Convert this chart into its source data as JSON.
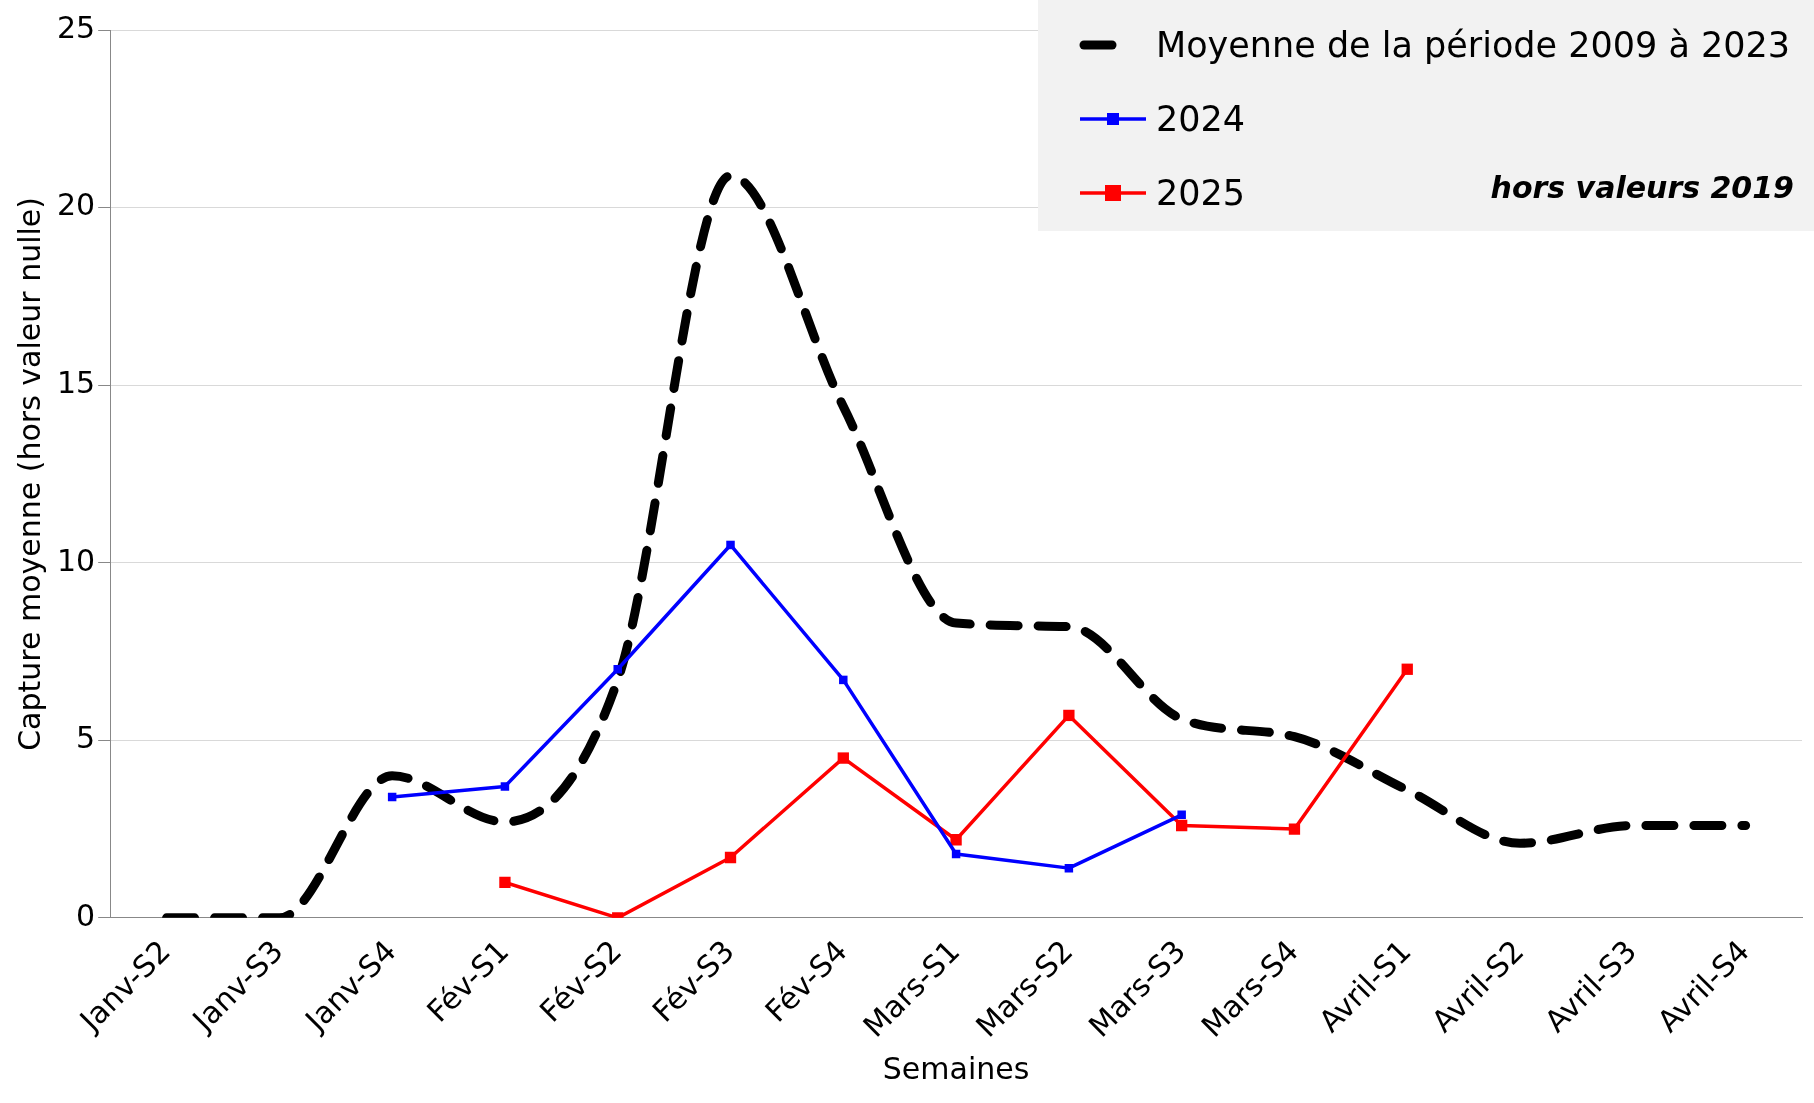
{
  "chart_data": {
    "type": "line",
    "xlabel": "Semaines",
    "ylabel": "Capture moyenne (hors valeur nulle)",
    "categories": [
      "Janv-S2",
      "Janv-S3",
      "Janv-S4",
      "Fév-S1",
      "Fév-S2",
      "Fév-S3",
      "Fév-S4",
      "Mars-S1",
      "Mars-S2",
      "Mars-S3",
      "Mars-S4",
      "Avril-S1",
      "Avril-S2",
      "Avril-S3",
      "Avril-S4"
    ],
    "series": [
      {
        "name": "Moyenne de la période 2009 à 2023",
        "color": "#000000",
        "line_style": "dashed",
        "marker": "none",
        "values": [
          0,
          0,
          4.0,
          2.7,
          6.7,
          20.9,
          14.4,
          8.3,
          8.2,
          5.6,
          5.1,
          3.6,
          2.1,
          2.6,
          2.6
        ]
      },
      {
        "name": "2024",
        "color": "#0000ff",
        "marker": "square",
        "values": [
          null,
          null,
          3.4,
          3.7,
          7.0,
          10.5,
          6.7,
          1.8,
          1.4,
          2.9,
          null,
          null,
          null,
          null,
          null
        ]
      },
      {
        "name": "2025",
        "color": "#ff0000",
        "marker": "square",
        "values": [
          null,
          null,
          null,
          1.0,
          0,
          1.7,
          4.5,
          2.2,
          5.7,
          2.6,
          2.5,
          7.0,
          null,
          null,
          null
        ]
      }
    ],
    "ylim": [
      0,
      25
    ],
    "yticks": [
      0,
      5,
      10,
      15,
      20,
      25
    ],
    "grid": "y",
    "legend": "top right",
    "annotations": [
      "hors valeurs 2019"
    ]
  }
}
